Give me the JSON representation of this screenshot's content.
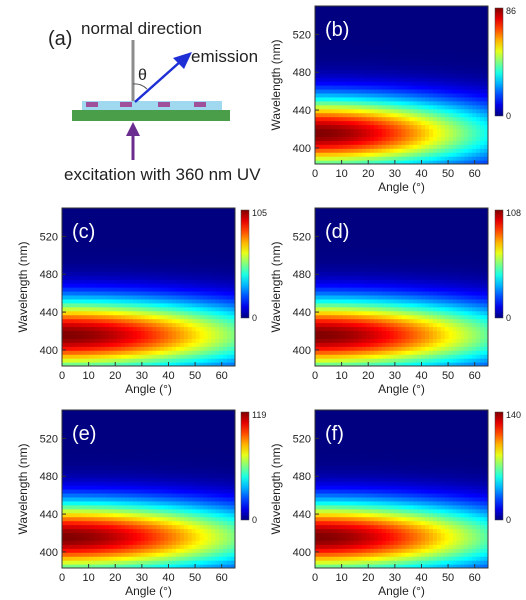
{
  "schematic": {
    "panel_label": "(a)",
    "normal_label": "normal direction",
    "emission_label": "emission",
    "angle_symbol": "θ",
    "excitation_label": "excitation with 360 nm UV",
    "colors": {
      "substrate": "#4a9e4a",
      "film": "#9fd8ef",
      "particles": "#a0509a",
      "normal_line": "#8c8c8c",
      "emission_arrow": "#1f2fd6",
      "excitation_arrow": "#6b2c8f"
    }
  },
  "chart_data": [
    {
      "type": "heatmap",
      "panel": "(b)",
      "xlabel": "Angle (°)",
      "ylabel": "Wavelength (nm)",
      "xlim": [
        0,
        65
      ],
      "ylim": [
        383,
        550
      ],
      "xticks": [
        0,
        10,
        20,
        30,
        40,
        50,
        60
      ],
      "yticks": [
        400,
        440,
        480,
        520
      ],
      "colorbar": {
        "min": 0,
        "max": 86,
        "labels": [
          "86",
          "0"
        ]
      },
      "peak": {
        "wavelength": 416,
        "angle": 0,
        "value": 86
      },
      "spectral_width_nm": 26,
      "angular_falloff_deg": 47
    },
    {
      "type": "heatmap",
      "panel": "(c)",
      "xlabel": "Angle (°)",
      "ylabel": "Wavelength (nm)",
      "xlim": [
        0,
        65
      ],
      "ylim": [
        383,
        550
      ],
      "xticks": [
        0,
        10,
        20,
        30,
        40,
        50,
        60
      ],
      "yticks": [
        400,
        440,
        480,
        520
      ],
      "colorbar": {
        "min": 0,
        "max": 105,
        "labels": [
          "105",
          "0"
        ]
      },
      "peak": {
        "wavelength": 416,
        "angle": 0,
        "value": 105
      },
      "spectral_width_nm": 26,
      "angular_falloff_deg": 55
    },
    {
      "type": "heatmap",
      "panel": "(d)",
      "xlabel": "Angle (°)",
      "ylabel": "Wavelength (nm)",
      "xlim": [
        0,
        65
      ],
      "ylim": [
        383,
        550
      ],
      "xticks": [
        0,
        10,
        20,
        30,
        40,
        50,
        60
      ],
      "yticks": [
        400,
        440,
        480,
        520
      ],
      "colorbar": {
        "min": 0,
        "max": 108,
        "labels": [
          "108",
          "0"
        ]
      },
      "peak": {
        "wavelength": 416,
        "angle": 0,
        "value": 108
      },
      "spectral_width_nm": 26,
      "angular_falloff_deg": 53
    },
    {
      "type": "heatmap",
      "panel": "(e)",
      "xlabel": "Angle (°)",
      "ylabel": "Wavelength (nm)",
      "xlim": [
        0,
        65
      ],
      "ylim": [
        383,
        550
      ],
      "xticks": [
        0,
        10,
        20,
        30,
        40,
        50,
        60
      ],
      "yticks": [
        400,
        440,
        480,
        520
      ],
      "colorbar": {
        "min": 0,
        "max": 119,
        "labels": [
          "119",
          "0"
        ]
      },
      "peak": {
        "wavelength": 416,
        "angle": 0,
        "value": 119
      },
      "spectral_width_nm": 26,
      "angular_falloff_deg": 55
    },
    {
      "type": "heatmap",
      "panel": "(f)",
      "xlabel": "Angle (°)",
      "ylabel": "Wavelength (nm)",
      "xlim": [
        0,
        65
      ],
      "ylim": [
        383,
        550
      ],
      "xticks": [
        0,
        10,
        20,
        30,
        40,
        50,
        60
      ],
      "yticks": [
        400,
        440,
        480,
        520
      ],
      "colorbar": {
        "min": 0,
        "max": 140,
        "labels": [
          "140",
          "0"
        ]
      },
      "peak": {
        "wavelength": 416,
        "angle": 0,
        "value": 140
      },
      "spectral_width_nm": 26,
      "angular_falloff_deg": 52
    }
  ]
}
